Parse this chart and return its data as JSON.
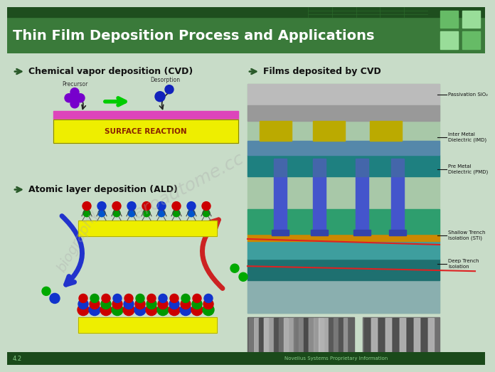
{
  "title": "Thin Film Deposition Process and Applications",
  "title_color": "#FFFFFF",
  "header_bg": "#3A7A3A",
  "header_dark": "#1E4E1E",
  "slide_bg": "#C8DCC8",
  "section1_title": "Chemical vapor deposition (CVD)",
  "section2_title": "Atomic layer deposition (ALD)",
  "section3_title": "Films deposited by CVD",
  "arrow_color": "#2A5A2A",
  "surface_reaction_text": "SURFACE REACTION",
  "surface_reaction_text_color": "#882200",
  "cvd_film_labels": [
    "Passivation SiO₂",
    "Inter Metal\nDielectric (IMD)",
    "Pre Metal\nDielectric (PMD)",
    "Shallow Trench\nIsolation (STI)",
    "Deep Trench\nIsolation"
  ],
  "precursor_color": "#7700CC",
  "desorption_color": "#1122BB",
  "arrow_green": "#00CC00",
  "substrate_color": "#EEEE00",
  "film_pink": "#DD44BB",
  "bottom_bar_color": "#1A4A1A",
  "watermark_color": "#AAAAAA",
  "watermark_alpha": 0.35,
  "logo_colors": [
    "#66BB66",
    "#99DD99",
    "#99DD99",
    "#66BB66"
  ]
}
